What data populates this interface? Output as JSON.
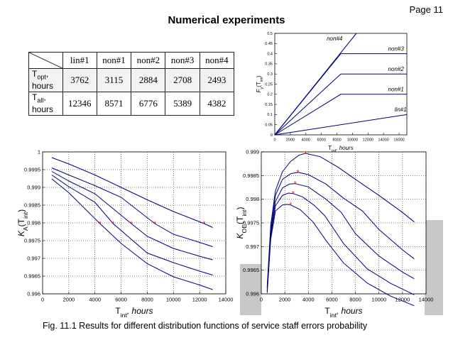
{
  "page_label": "Page 11",
  "title": "Numerical experiments",
  "caption": "Fig. 11.1 Results for different distribution functions of service staff errors probability",
  "table": {
    "columns": [
      "lin#1",
      "non#1",
      "non#2",
      "non#3",
      "non#4"
    ],
    "rows": [
      {
        "label_main": "T",
        "label_sub": "opt",
        "label_rest": ",",
        "label_line2": "hours",
        "values": [
          "3762",
          "3115",
          "2884",
          "2708",
          "2493"
        ]
      },
      {
        "label_main": "T",
        "label_sub": "all",
        "label_rest": ",",
        "label_line2": "hours",
        "values": [
          "12346",
          "8571",
          "6776",
          "5389",
          "4382"
        ]
      }
    ]
  },
  "chart_data": [
    {
      "id": "chart-top",
      "type": "line",
      "ylabel_main": "F",
      "ylabel_sub": "y",
      "ylabel_arg": "(T",
      "ylabel_arg_sub": "int",
      "ylabel_close": ")",
      "xlabel_main": "T",
      "xlabel_sub": "int",
      "xlabel_rest": ", hours",
      "xlim": [
        0,
        17000
      ],
      "ylim": [
        0,
        0.5
      ],
      "xticks": [
        0,
        2000,
        4000,
        6000,
        8000,
        10000,
        12000,
        14000,
        16000
      ],
      "yticks": [
        0,
        0.05,
        0.1,
        0.15,
        0.2,
        0.25,
        0.3,
        0.35,
        0.4,
        0.45,
        0.5
      ],
      "ytick_labels": [
        "0",
        "0.05",
        "0.1",
        "0.15",
        "0.2",
        "0.25",
        "0.3",
        "0.35",
        "0.4",
        "0.45",
        "0.5"
      ],
      "xtick_labels": [
        "0",
        "2000",
        "4000",
        "6000",
        "8000",
        "10000",
        "12000",
        "14000",
        "16000"
      ],
      "grid": false,
      "series": [
        {
          "name": "lin#1",
          "x": [
            0,
            17000
          ],
          "y": [
            0,
            0.1
          ],
          "label_x": 16200,
          "label_y": 0.115
        },
        {
          "name": "non#1",
          "x": [
            0,
            8500,
            17000
          ],
          "y": [
            0,
            0.2,
            0.2
          ],
          "label_x": 15600,
          "label_y": 0.215
        },
        {
          "name": "non#2",
          "x": [
            0,
            8500,
            17000
          ],
          "y": [
            0,
            0.3,
            0.3
          ],
          "label_x": 15600,
          "label_y": 0.315
        },
        {
          "name": "non#3",
          "x": [
            0,
            8500,
            17000
          ],
          "y": [
            0,
            0.4,
            0.4
          ],
          "label_x": 15600,
          "label_y": 0.415
        },
        {
          "name": "non#4",
          "x": [
            0,
            10500
          ],
          "y": [
            0,
            0.5
          ],
          "label_x": 7700,
          "label_y": 0.465
        }
      ]
    },
    {
      "id": "chart-left",
      "type": "line",
      "ylabel_main": "K",
      "ylabel_sub": "A",
      "ylabel_arg": "(T",
      "ylabel_arg_sub": "int",
      "ylabel_close": ")",
      "xlabel_main": "T",
      "xlabel_sub": "int",
      "xlabel_rest": ", hours",
      "xlim": [
        0,
        14000
      ],
      "ylim": [
        0.996,
        1
      ],
      "xticks": [
        0,
        2000,
        4000,
        6000,
        8000,
        10000,
        12000,
        14000
      ],
      "xtick_labels": [
        "0",
        "2000",
        "4000",
        "6000",
        "8000",
        "10000",
        "12000",
        "14000"
      ],
      "yticks": [
        0.996,
        0.9965,
        0.997,
        0.9975,
        0.998,
        0.9985,
        0.999,
        0.9995,
        1
      ],
      "ytick_labels": [
        "0.996",
        "0.9965",
        "0.997",
        "0.9975",
        "0.998",
        "0.9985",
        "0.999",
        "0.9995",
        "1"
      ],
      "grid": true,
      "marker_color": "#ff2020",
      "series": [
        {
          "name": "lin#1",
          "x": [
            700,
            2000,
            4000,
            6000,
            8000,
            10000,
            12346,
            13000
          ],
          "y": [
            0.99984,
            0.99966,
            0.99935,
            0.999,
            0.99865,
            0.99832,
            0.99798,
            0.99787
          ],
          "marker": [
            12346,
            0.99798
          ]
        },
        {
          "name": "non#1",
          "x": [
            700,
            2000,
            4000,
            6000,
            8571,
            10000,
            12000,
            13000
          ],
          "y": [
            0.99955,
            0.99935,
            0.99905,
            0.99872,
            0.99798,
            0.99768,
            0.99745,
            0.99733
          ],
          "marker": [
            8571,
            0.99798
          ]
        },
        {
          "name": "non#2",
          "x": [
            700,
            2000,
            4000,
            6776,
            8000,
            10000,
            12000,
            13000
          ],
          "y": [
            0.99945,
            0.99918,
            0.99882,
            0.99798,
            0.99762,
            0.99728,
            0.99706,
            0.99696
          ],
          "marker": [
            6776,
            0.99798
          ]
        },
        {
          "name": "non#3",
          "x": [
            700,
            2000,
            4000,
            5389,
            8000,
            10000,
            12000,
            13000
          ],
          "y": [
            0.99935,
            0.99902,
            0.99858,
            0.99798,
            0.99715,
            0.99688,
            0.99664,
            0.99653
          ],
          "marker": [
            5389,
            0.99798
          ]
        },
        {
          "name": "non#4",
          "x": [
            700,
            2000,
            4382,
            6000,
            8000,
            10000,
            12000,
            13000
          ],
          "y": [
            0.99924,
            0.99885,
            0.99798,
            0.99742,
            0.99685,
            0.99648,
            0.99625,
            0.99612
          ],
          "marker": [
            4382,
            0.99798
          ]
        }
      ]
    },
    {
      "id": "chart-right",
      "type": "line",
      "ylabel_main": "K",
      "ylabel_sub": "OE",
      "ylabel_arg": "(T",
      "ylabel_arg_sub": "int",
      "ylabel_close": ")",
      "xlabel_main": "T",
      "xlabel_sub": "int",
      "xlabel_rest": ", hours",
      "xlim": [
        0,
        14000
      ],
      "ylim": [
        0.996,
        0.999
      ],
      "xticks": [
        0,
        2000,
        4000,
        6000,
        8000,
        10000,
        12000,
        14000
      ],
      "xtick_labels": [
        "0",
        "2000",
        "4000",
        "6000",
        "8000",
        "10000",
        "12000",
        "14000"
      ],
      "yticks": [
        0.996,
        0.9965,
        0.997,
        0.9975,
        0.998,
        0.9985,
        0.999
      ],
      "ytick_labels": [
        "0.996",
        "0.9965",
        "0.997",
        "0.9975",
        "0.998",
        "0.9985",
        "0.999"
      ],
      "grid": true,
      "marker_color": "#ff2020",
      "series": [
        {
          "name": "lin#1",
          "x": [
            500,
            800,
            1200,
            1800,
            2500,
            3200,
            3762,
            5000,
            6500,
            8000,
            10000,
            12000,
            13000
          ],
          "y": [
            0.99615,
            0.99745,
            0.99818,
            0.99858,
            0.9988,
            0.99893,
            0.99897,
            0.9989,
            0.99868,
            0.99842,
            0.99808,
            0.99772,
            0.99752
          ],
          "marker": [
            3762,
            0.99897
          ]
        },
        {
          "name": "non#1",
          "x": [
            500,
            800,
            1200,
            1800,
            2500,
            3115,
            4000,
            5500,
            7000,
            8600,
            10000,
            12000,
            13000
          ],
          "y": [
            0.99612,
            0.99738,
            0.99808,
            0.99842,
            0.99854,
            0.99857,
            0.99852,
            0.99832,
            0.99802,
            0.99775,
            0.99736,
            0.99693,
            0.99674
          ],
          "marker": [
            3115,
            0.99857
          ]
        },
        {
          "name": "non#2",
          "x": [
            500,
            800,
            1200,
            1800,
            2400,
            2884,
            4000,
            5500,
            6800,
            8000,
            10000,
            12000,
            13000
          ],
          "y": [
            0.99608,
            0.99728,
            0.99795,
            0.99824,
            0.99832,
            0.99833,
            0.99826,
            0.998,
            0.99772,
            0.99727,
            0.9968,
            0.99646,
            0.99632
          ],
          "marker": [
            2884,
            0.99833
          ]
        },
        {
          "name": "non#3",
          "x": [
            500,
            800,
            1200,
            1800,
            2300,
            2708,
            3500,
            4500,
            5400,
            7000,
            9000,
            11000,
            13000
          ],
          "y": [
            0.99605,
            0.99722,
            0.99786,
            0.99808,
            0.99813,
            0.99812,
            0.99805,
            0.99787,
            0.99765,
            0.99706,
            0.99653,
            0.99622,
            0.99598
          ],
          "marker": [
            2708,
            0.99812
          ]
        },
        {
          "name": "non#4",
          "x": [
            500,
            800,
            1200,
            1800,
            2200,
            2493,
            3300,
            4400,
            5500,
            7000,
            9000,
            11000,
            13000
          ],
          "y": [
            0.99602,
            0.99715,
            0.99775,
            0.99788,
            0.99789,
            0.99788,
            0.99778,
            0.99752,
            0.99713,
            0.99665,
            0.99623,
            0.99595,
            0.99575
          ],
          "marker": [
            2493,
            0.99788
          ]
        }
      ]
    }
  ]
}
